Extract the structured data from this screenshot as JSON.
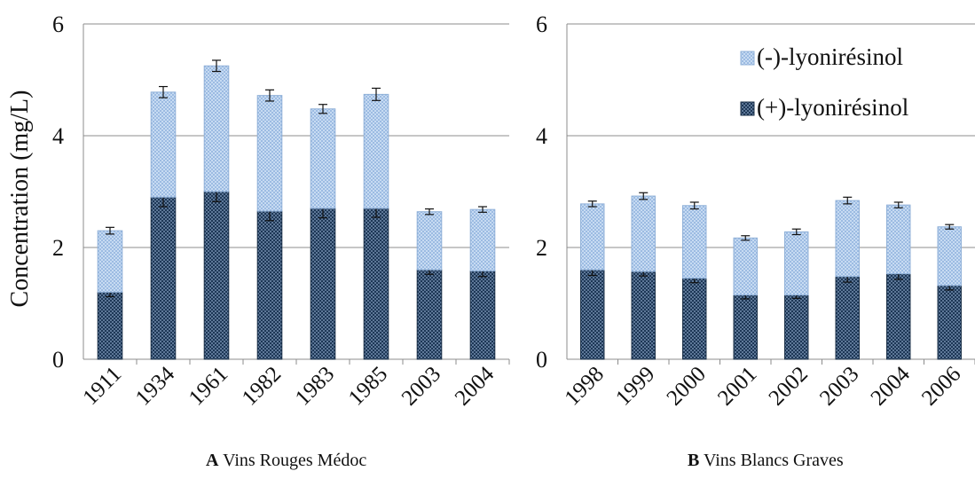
{
  "chart_data": [
    {
      "type": "bar",
      "stacked": true,
      "panel_letter": "A",
      "caption": "Vins Rouges Médoc",
      "ylabel": "Concentration (mg/L)",
      "ylim": [
        0,
        6
      ],
      "yticks": [
        0,
        2,
        4,
        6
      ],
      "grid": true,
      "categories": [
        "1911",
        "1934",
        "1961",
        "1982",
        "1983",
        "1985",
        "2003",
        "2004"
      ],
      "series": [
        {
          "name": "(+)-lyonirésinol",
          "color": "#1f3b5c",
          "values": [
            1.2,
            2.9,
            3.0,
            2.65,
            2.7,
            2.7,
            1.6,
            1.58
          ],
          "errors": [
            0.08,
            0.17,
            0.18,
            0.17,
            0.17,
            0.16,
            0.08,
            0.1
          ]
        },
        {
          "name": "(-)-lyonirésinol",
          "color": "#a9c5e8",
          "values": [
            1.1,
            1.88,
            2.25,
            2.07,
            1.78,
            2.04,
            1.04,
            1.1
          ],
          "errors": [
            0.06,
            0.1,
            0.1,
            0.1,
            0.08,
            0.11,
            0.05,
            0.05
          ]
        }
      ]
    },
    {
      "type": "bar",
      "stacked": true,
      "panel_letter": "B",
      "caption": "Vins Blancs Graves",
      "ylabel": "",
      "ylim": [
        0,
        6
      ],
      "yticks": [
        0,
        2,
        4,
        6
      ],
      "grid": true,
      "legend": "top-right",
      "categories": [
        "1998",
        "1999",
        "2000",
        "2001",
        "2002",
        "2003",
        "2004",
        "2006"
      ],
      "series": [
        {
          "name": "(+)-lyonirésinol",
          "color": "#1f3b5c",
          "values": [
            1.6,
            1.57,
            1.45,
            1.15,
            1.15,
            1.48,
            1.53,
            1.32
          ],
          "errors": [
            0.1,
            0.08,
            0.08,
            0.07,
            0.06,
            0.1,
            0.1,
            0.08
          ]
        },
        {
          "name": "(-)-lyonirésinol",
          "color": "#a9c5e8",
          "values": [
            1.18,
            1.35,
            1.3,
            1.02,
            1.13,
            1.36,
            1.23,
            1.05
          ],
          "errors": [
            0.05,
            0.06,
            0.06,
            0.04,
            0.05,
            0.06,
            0.05,
            0.04
          ]
        }
      ]
    }
  ]
}
